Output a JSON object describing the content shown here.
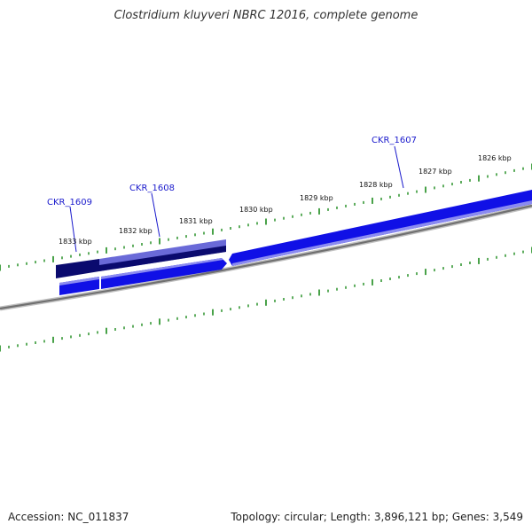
{
  "title": "Clostridium kluyveri NBRC 12016, complete genome",
  "footer": {
    "accession": "Accession: NC_011837",
    "summary": "Topology: circular; Length: 3,896,121 bp; Genes: 3,549"
  },
  "colors": {
    "cds": "#1010e6",
    "cds_dark": "#0a0a6e",
    "cds_light": "#8b8bf0",
    "cds_selected": "#6a6ad8",
    "backbone": "#808080",
    "tick": "#1b8a1b",
    "label": "#1a1acc"
  },
  "ruler": {
    "labels": [
      "1833 kbp",
      "1832 kbp",
      "1831 kbp",
      "1830 kbp",
      "1829 kbp",
      "1828 kbp",
      "1827 kbp",
      "1826 kbp"
    ]
  },
  "genes": [
    {
      "name": "CKR_1609",
      "icon": "gene-callout"
    },
    {
      "name": "CKR_1608",
      "icon": "gene-callout"
    },
    {
      "name": "CKR_1607",
      "icon": "gene-callout"
    }
  ]
}
